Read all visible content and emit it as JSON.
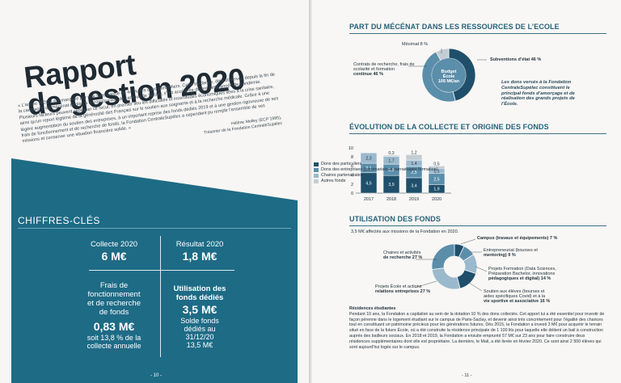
{
  "left_page": {
    "title_line1": "Rapport",
    "title_line2": "de gestion 2020",
    "intro": "« L’année 2020 a été marquée par une forte baisse de 44 % des dons particuliers. Cette tendance, déjà observée depuis la fin de la campagne de mécénat dédiée à la construction du campus de Saclay, s’est accélérée durant cette année de pandémie. Plusieurs facteurs peuvent expliquer ce recul, en premier lieu les difficultés et incertitudes économiques liées à la crise sanitaire, ainsi qu’un report légitime de la générosité des Français sur le soutien aux soignants et à la recherche médicale. Grâce à une légère augmentation du soutien des entreprises, à un important reprise des fonds dédiés 2019 et à une gestion rigoureuse de ses frais de fonctionnement et de recherche de fonds, la Fondation CentraleSupélec a cependant pu remplir l’ensemble de ses missions et conserver une situation financière solide. »",
    "signature_name": "Hélène Molley (ECP 1985),",
    "signature_role": "Trésorier de la Fondation CentraleSupélec",
    "keyfigures_title": "CHIFFRES-CLÉS",
    "kpis": {
      "collecte_label": "Collecte 2020",
      "collecte_value": "6 M€",
      "resultat_label": "Résultat 2020",
      "resultat_value": "1,8 M€",
      "frais_label_1": "Frais de",
      "frais_label_2": "fonctionnement",
      "frais_label_3": "et de recherche",
      "frais_label_4": "de fonds",
      "frais_value": "0,83 M€",
      "frais_sub_1": "soit 13,8 % de la",
      "frais_sub_2": "collecte annuelle",
      "dedies_label_1": "Utilisation des",
      "dedies_label_2": "fonds dédiés",
      "dedies_value": "3,5 M€",
      "dedies_sub_1": "Solde fonds",
      "dedies_sub_2": "dédiés au",
      "dedies_sub_3": "31/12/20",
      "dedies_sub_4": "13,5 M€"
    },
    "page_number": "- 10 -"
  },
  "right_page": {
    "section1_title": "PART DU MÉCÉNAT DANS LES RESSOURCES DE L’ECOLE",
    "pie1_center_1": "Budget",
    "pie1_center_2": "École",
    "pie1_center_3": "105 M€/an",
    "pie1_mecenat": "Mécénat 8 %",
    "pie1_contrats_1": "Contrats de recherche, frais de",
    "pie1_contrats_2": "scolarité et formation",
    "pie1_contrats_3": "continue 46 %",
    "pie1_subventions": "Subventions d’état 46 %",
    "pie1_note": "Les dons versés à la Fondation CentraleSupélec constituent le principal fonds d’amorçage et de réalisation des grands projets de l’École.",
    "section2_title": "ÉVOLUTION DE LA COLLECTE ET ORIGINE DES FONDS",
    "section3_title": "UTILISATION DES FONDS",
    "use_intro": "3,5 M€ affectés aux missions de la Fondation en 2020.",
    "pie2_labels": {
      "chaires_1": "Chaires et activités",
      "chaires_2": "de recherche 27 %",
      "projets_1": "Projets École et actions",
      "projets_2": "relations entreprises 27 %",
      "campus": "Campus (travaux et équipements) 7 %",
      "entrepreneuriat_1": "Entrepreneuriat (bourses et",
      "entrepreneuriat_2": "mentoring) 9 %",
      "formation_1": "Projets Formation (Data Sciences,",
      "formation_2": "Préparation Bachelor, innovations",
      "formation_3": "pédagogiques et digital) 14 %",
      "soutien_1": "Soutien aux élèves (bourses et",
      "soutien_2": "aides spécifiques Covid) et à la",
      "soutien_3": "vie sportive et associative 16 %"
    },
    "body_heading": "Résidences étudiantes",
    "body_text": "Pendant 10 ans, la Fondation a capitalisé au sein de la dotation 10 % des dons collectés. Cet apport lui a été essentiel pour investir de façon pérenne dans le logement étudiant sur le campus de Paris-Saclay, et devenir ainsi très concrètement pour l’égalité des chances tout en constituant un patrimoine précieux pour les générations futures. Dès 2015, la Fondation a investi 3 M€ pour acquérir le terrain situé en face de la future École, où a été construite la résidence principale de 1 100 lits pour laquelle elle détient un bail à construction auprès des bailleurs sociaux. En 2018 et 2019, la Fondation a ensuite emprunté 57 M€ sur 23 ans pour faire construire deux résidences supplémentaires dont elle est propriétaire. La dernière, le Mail, a été livrée en février 2020. Ce sont ainsi 2 500 élèves qui sont aujourd’hui logés sur le campus.",
    "page_number": "- 11 -"
  },
  "colors": {
    "dark_teal": "#1e6b86",
    "navy": "#1f4f6b",
    "mid_blue": "#5b8eaa",
    "light_blue": "#9bb9cc",
    "pale_grey": "#c3cdd4"
  },
  "chart_data": [
    {
      "type": "pie",
      "title": "PART DU MÉCÉNAT DANS LES RESSOURCES DE L’ECOLE",
      "slices": [
        {
          "name": "Subventions d’état",
          "value": 46
        },
        {
          "name": "Contrats de recherche, frais de scolarité et formation continue",
          "value": 46
        },
        {
          "name": "Mécénat",
          "value": 8
        }
      ]
    },
    {
      "type": "bar",
      "title": "ÉVOLUTION DE LA COLLECTE ET ORIGINE DES FONDS",
      "stacked": true,
      "categories": [
        "2017",
        "2018",
        "2019",
        "2020"
      ],
      "ylim": [
        0,
        10
      ],
      "yticks": [
        "0",
        "2",
        "4",
        "6",
        "8",
        "10"
      ],
      "series": [
        {
          "name": "Dons des particuliers",
          "values": [
            4.5,
            3.9,
            3.4,
            1.9
          ]
        },
        {
          "name": "Dons des entreprises (partenariats et parrainages formation)",
          "values": [
            2.1,
            2.5,
            2.5,
            2.5
          ]
        },
        {
          "name": "Chaires partenariales",
          "values": [
            2.3,
            1.7,
            1.4,
            1.1
          ]
        },
        {
          "name": "Autres fonds",
          "values": [
            0,
            0.3,
            1.2,
            0.5
          ]
        }
      ],
      "legend": "right"
    },
    {
      "type": "pie",
      "title": "UTILISATION DES FONDS",
      "slices": [
        {
          "name": "Campus (travaux et équipements)",
          "value": 7
        },
        {
          "name": "Entrepreneuriat (bourses et mentoring)",
          "value": 9
        },
        {
          "name": "Projets Formation (Data Sciences, Préparation Bachelor, innovations pédagogiques et digital)",
          "value": 14
        },
        {
          "name": "Soutien aux élèves (bourses et aides spécifiques Covid) et à la vie sportive et associative",
          "value": 16
        },
        {
          "name": "Projets École et actions relations entreprises",
          "value": 27
        },
        {
          "name": "Chaires et activités de recherche",
          "value": 27
        }
      ]
    }
  ]
}
